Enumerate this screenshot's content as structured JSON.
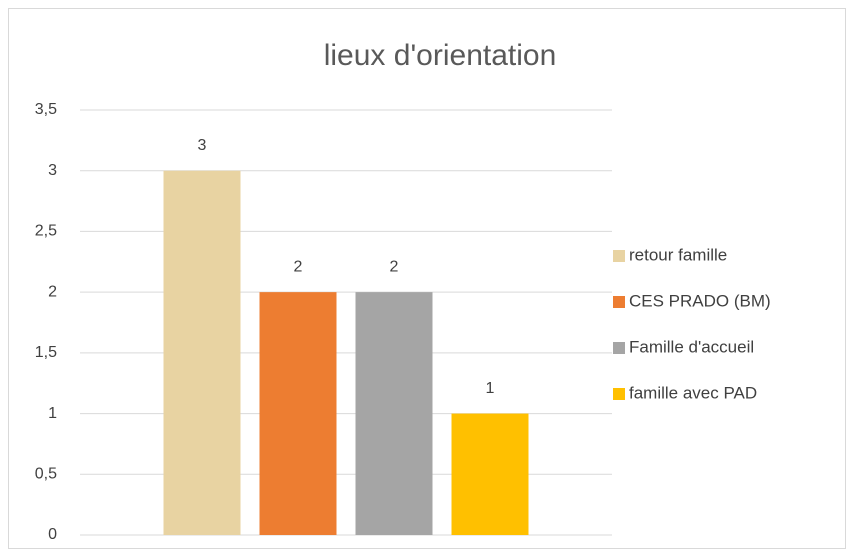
{
  "chart_data": {
    "type": "bar",
    "title": "lieux d'orientation",
    "categories": [
      null
    ],
    "series": [
      {
        "name": "retour famille",
        "color": "#e8d3a2",
        "values": [
          3
        ]
      },
      {
        "name": "CES PRADO (BM)",
        "color": "#ed7d31",
        "values": [
          2
        ]
      },
      {
        "name": "Famille d'accueil",
        "color": "#a5a5a5",
        "values": [
          2
        ]
      },
      {
        "name": "famille avec PAD",
        "color": "#ffc000",
        "values": [
          1
        ]
      }
    ],
    "ylim": [
      0,
      3.5
    ],
    "yticks": [
      0,
      {
        "value": 0.5,
        "label": "0,5"
      },
      1,
      {
        "value": 1.5,
        "label": "1,5"
      },
      2,
      {
        "value": 2.5,
        "label": "2,5"
      },
      3,
      {
        "value": 3.5,
        "label": "3,5"
      }
    ],
    "grid": true,
    "legend": "right"
  }
}
